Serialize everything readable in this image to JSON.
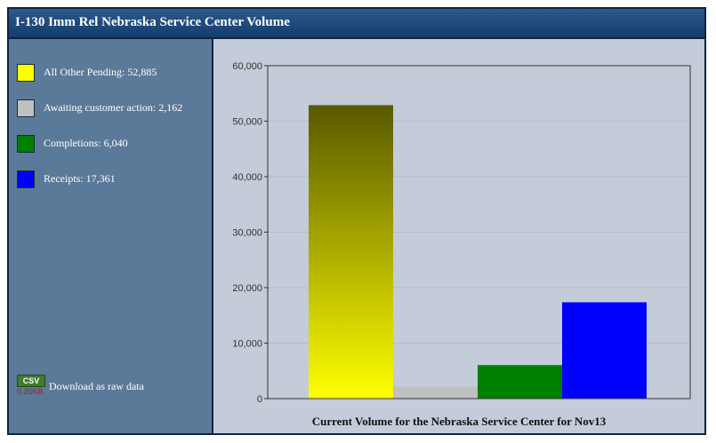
{
  "title": "I-130 Imm Rel Nebraska Service Center Volume",
  "legend": [
    {
      "label": "All Other Pending: 52,885",
      "color": "#ffff00"
    },
    {
      "label": "Awaiting customer action: 2,162",
      "color": "#c0c0c0"
    },
    {
      "label": "Completions: 6,040",
      "color": "#008000"
    },
    {
      "label": "Receipts: 17,361",
      "color": "#0000ff"
    }
  ],
  "download": {
    "badge": "CSV",
    "size": "0.20KB",
    "label": "Download as raw data",
    "icon": "csv-file-icon"
  },
  "chart_data": {
    "type": "bar",
    "categories": [
      "All Other Pending",
      "Awaiting customer action",
      "Completions",
      "Receipts"
    ],
    "values": [
      52885,
      2162,
      6040,
      17361
    ],
    "colors": [
      "#ffff00",
      "#c0c0c0",
      "#008000",
      "#0000ff"
    ],
    "gradient_top_color": "#585800",
    "title": "Current Volume for the Nebraska Service Center for Nov13",
    "xlabel": "",
    "ylabel": "",
    "ylim": [
      0,
      60000
    ],
    "yticks": [
      "0",
      "10,000",
      "20,000",
      "30,000",
      "40,000",
      "50,000",
      "60,000"
    ],
    "grid": true,
    "legend_position": "left-sidebar"
  }
}
